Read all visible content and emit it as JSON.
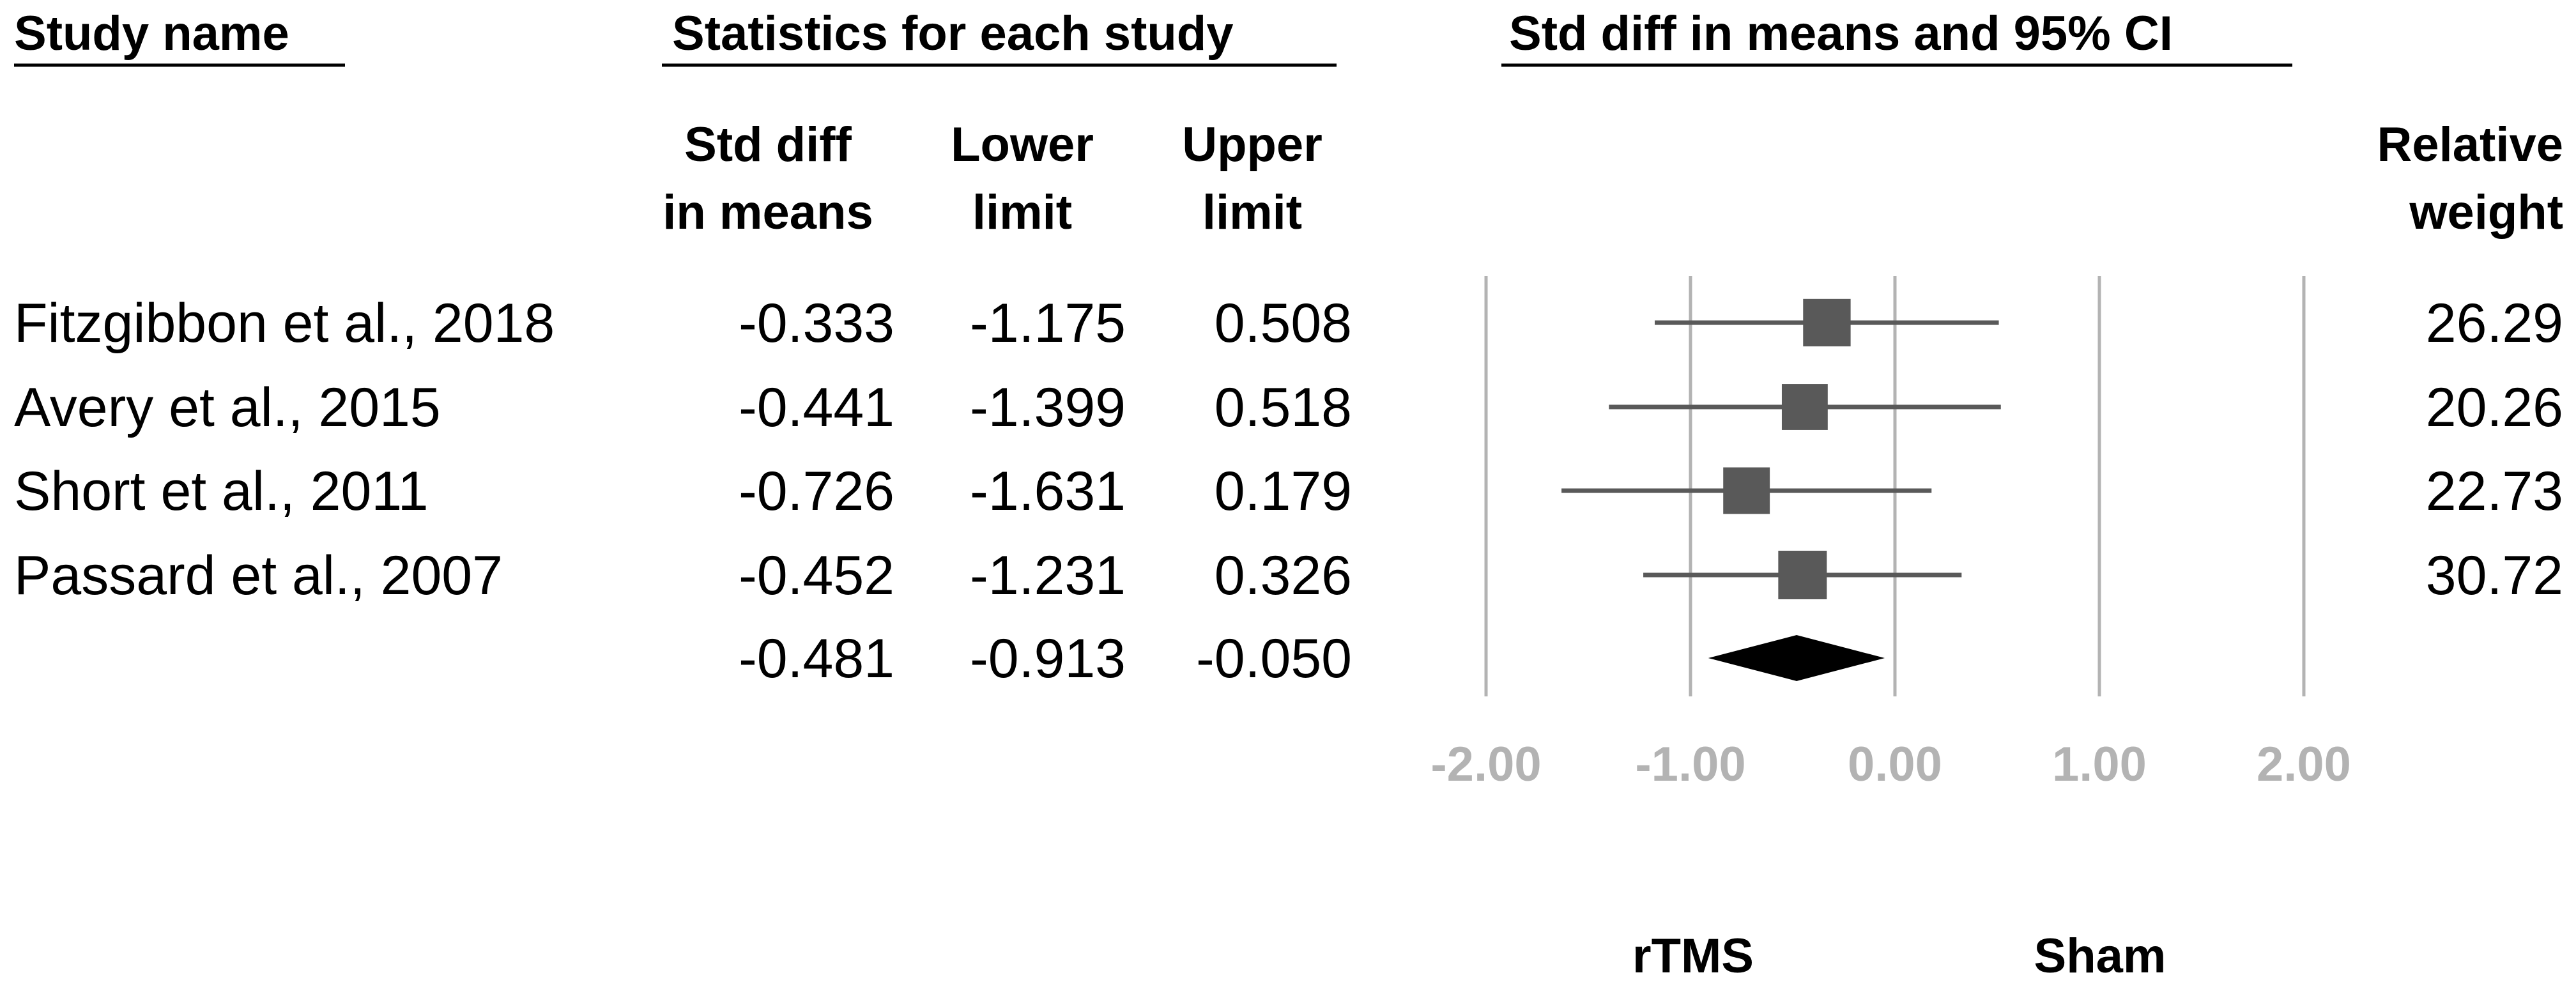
{
  "headers": {
    "study": "Study name",
    "stats": "Statistics for each study",
    "plot": "Std diff in means and 95% CI"
  },
  "columns": {
    "std_diff": [
      "Std diff",
      "in means"
    ],
    "lower": [
      "Lower",
      "limit"
    ],
    "upper": [
      "Upper",
      "limit"
    ],
    "weight": [
      "Relative",
      "weight"
    ]
  },
  "side_labels": {
    "left": "rTMS",
    "right": "Sham"
  },
  "colors": {
    "box": "#595959",
    "line": "#595959",
    "diamond": "#000000",
    "grid": "#b3b3b3",
    "tick": "#b3b3b3"
  },
  "chart_data": {
    "type": "forest",
    "xlim": [
      -2,
      2
    ],
    "ticks": [
      -2,
      -1,
      0,
      1,
      2
    ],
    "tick_labels": [
      "-2.00",
      "-1.00",
      "0.00",
      "1.00",
      "2.00"
    ],
    "studies": [
      {
        "name": "Fitzgibbon et al., 2018",
        "std_diff": -0.333,
        "lower": -1.175,
        "upper": 0.508,
        "weight": 26.29,
        "std_diff_text": "-0.333",
        "lower_text": "-1.175",
        "upper_text": "0.508",
        "weight_text": "26.29"
      },
      {
        "name": "Avery et al., 2015",
        "std_diff": -0.441,
        "lower": -1.399,
        "upper": 0.518,
        "weight": 20.26,
        "std_diff_text": "-0.441",
        "lower_text": "-1.399",
        "upper_text": "0.518",
        "weight_text": "20.26"
      },
      {
        "name": "Short et al., 2011",
        "std_diff": -0.726,
        "lower": -1.631,
        "upper": 0.179,
        "weight": 22.73,
        "std_diff_text": "-0.726",
        "lower_text": "-1.631",
        "upper_text": "0.179",
        "weight_text": "22.73"
      },
      {
        "name": "Passard et al., 2007",
        "std_diff": -0.452,
        "lower": -1.231,
        "upper": 0.326,
        "weight": 30.72,
        "std_diff_text": "-0.452",
        "lower_text": "-1.231",
        "upper_text": "0.326",
        "weight_text": "30.72"
      }
    ],
    "summary": {
      "std_diff": -0.481,
      "lower": -0.913,
      "upper": -0.05,
      "std_diff_text": "-0.481",
      "lower_text": "-0.913",
      "upper_text": "-0.050"
    }
  }
}
